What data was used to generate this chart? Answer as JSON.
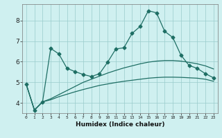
{
  "xlabel": "Humidex (Indice chaleur)",
  "bg_color": "#cff0f0",
  "line_color": "#1e6e64",
  "grid_color": "#99cccc",
  "xlim": [
    -0.5,
    23.5
  ],
  "ylim": [
    3.5,
    8.8
  ],
  "xticks": [
    0,
    1,
    2,
    3,
    4,
    5,
    6,
    7,
    8,
    9,
    10,
    11,
    12,
    13,
    14,
    15,
    16,
    17,
    18,
    19,
    20,
    21,
    22,
    23
  ],
  "yticks": [
    4,
    5,
    6,
    7,
    8
  ],
  "series1_x": [
    0,
    1,
    2,
    3,
    4,
    5,
    6,
    7,
    8,
    9,
    10,
    11,
    12,
    13,
    14,
    15,
    16,
    17,
    18,
    19,
    20,
    21,
    22,
    23
  ],
  "series1_y": [
    4.9,
    3.65,
    4.05,
    4.15,
    4.3,
    4.42,
    4.54,
    4.65,
    4.75,
    4.85,
    4.92,
    4.99,
    5.05,
    5.1,
    5.15,
    5.2,
    5.23,
    5.25,
    5.25,
    5.24,
    5.22,
    5.2,
    5.15,
    5.05
  ],
  "series2_x": [
    0,
    1,
    2,
    3,
    4,
    5,
    6,
    7,
    8,
    9,
    10,
    11,
    12,
    13,
    14,
    15,
    16,
    17,
    18,
    19,
    20,
    21,
    22,
    23
  ],
  "series2_y": [
    4.9,
    3.65,
    4.05,
    4.2,
    4.4,
    4.6,
    4.8,
    5.0,
    5.15,
    5.3,
    5.45,
    5.58,
    5.7,
    5.8,
    5.9,
    5.98,
    6.03,
    6.06,
    6.06,
    6.03,
    5.97,
    5.9,
    5.8,
    5.65
  ],
  "series3_x": [
    0,
    1,
    2,
    3,
    4,
    5,
    6,
    7,
    8,
    9,
    10,
    11,
    12,
    13,
    14,
    15,
    16,
    17,
    18,
    19,
    20,
    21,
    22,
    23
  ],
  "series3_y": [
    4.9,
    3.65,
    4.05,
    6.65,
    6.38,
    5.68,
    5.52,
    5.38,
    5.28,
    5.42,
    5.98,
    6.62,
    6.68,
    7.38,
    7.72,
    8.48,
    8.38,
    7.48,
    7.18,
    6.32,
    5.82,
    5.68,
    5.42,
    5.22
  ],
  "marker": "D",
  "markersize": 2.5,
  "linewidth": 0.9
}
